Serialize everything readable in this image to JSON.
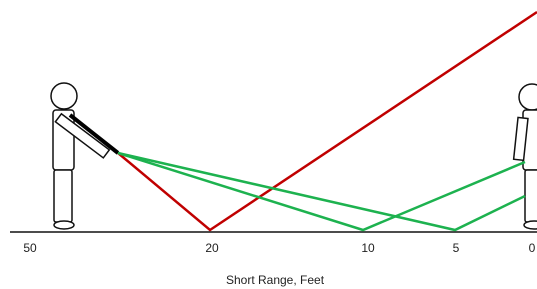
{
  "axis": {
    "labels": [
      "50",
      "20",
      "10",
      "5",
      "0"
    ],
    "title": "Short Range, Feet"
  }
}
